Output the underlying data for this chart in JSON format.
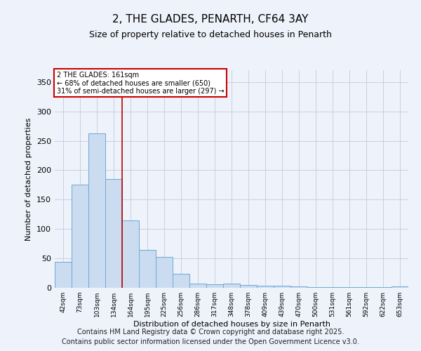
{
  "title1": "2, THE GLADES, PENARTH, CF64 3AY",
  "title2": "Size of property relative to detached houses in Penarth",
  "xlabel": "Distribution of detached houses by size in Penarth",
  "ylabel": "Number of detached properties",
  "categories": [
    "42sqm",
    "73sqm",
    "103sqm",
    "134sqm",
    "164sqm",
    "195sqm",
    "225sqm",
    "256sqm",
    "286sqm",
    "317sqm",
    "348sqm",
    "378sqm",
    "409sqm",
    "439sqm",
    "470sqm",
    "500sqm",
    "531sqm",
    "561sqm",
    "592sqm",
    "622sqm",
    "653sqm"
  ],
  "values": [
    44,
    176,
    262,
    185,
    115,
    65,
    52,
    24,
    7,
    6,
    7,
    5,
    4,
    3,
    2,
    1,
    1,
    1,
    1,
    1,
    2
  ],
  "bar_color": "#ccdcf0",
  "bar_edge_color": "#6aaad4",
  "vline_color": "#bb0000",
  "annotation_line1": "2 THE GLADES: 161sqm",
  "annotation_line2": "← 68% of detached houses are smaller (650)",
  "annotation_line3": "31% of semi-detached houses are larger (297) →",
  "annotation_box_color": "#cc0000",
  "ylim": [
    0,
    370
  ],
  "yticks": [
    0,
    50,
    100,
    150,
    200,
    250,
    300,
    350
  ],
  "footer1": "Contains HM Land Registry data © Crown copyright and database right 2025.",
  "footer2": "Contains public sector information licensed under the Open Government Licence v3.0.",
  "background_color": "#eef2fb",
  "grid_color": "#c8cfe0"
}
